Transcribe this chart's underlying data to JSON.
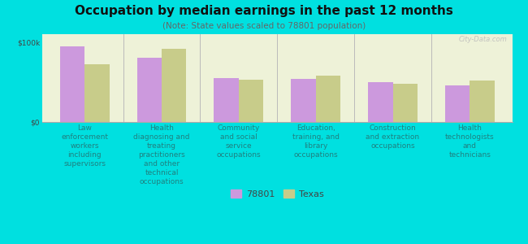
{
  "title": "Occupation by median earnings in the past 12 months",
  "subtitle": "(Note: State values scaled to 78801 population)",
  "categories": [
    "Law\nenforcement\nworkers\nincluding\nsupervisors",
    "Health\ndiagnosing and\ntreating\npractitioners\nand other\ntechnical\noccupations",
    "Community\nand social\nservice\noccupations",
    "Education,\ntraining, and\nlibrary\noccupations",
    "Construction\nand extraction\noccupations",
    "Health\ntechnologists\nand\ntechnicians"
  ],
  "values_78801": [
    95000,
    80000,
    55000,
    54000,
    50000,
    46000
  ],
  "values_texas": [
    72000,
    92000,
    53000,
    58000,
    48000,
    52000
  ],
  "bar_color_78801": "#cc99dd",
  "bar_color_texas": "#c8cc8a",
  "background_color": "#00e0e0",
  "plot_bg_color": "#eef2d8",
  "ylim": [
    0,
    110000
  ],
  "yticks": [
    0,
    100000
  ],
  "ytick_labels": [
    "$0",
    "$100k"
  ],
  "legend_labels": [
    "78801",
    "Texas"
  ],
  "watermark": "City-Data.com",
  "title_fontsize": 11,
  "subtitle_fontsize": 7.5,
  "tick_label_fontsize": 6.5,
  "legend_fontsize": 8
}
